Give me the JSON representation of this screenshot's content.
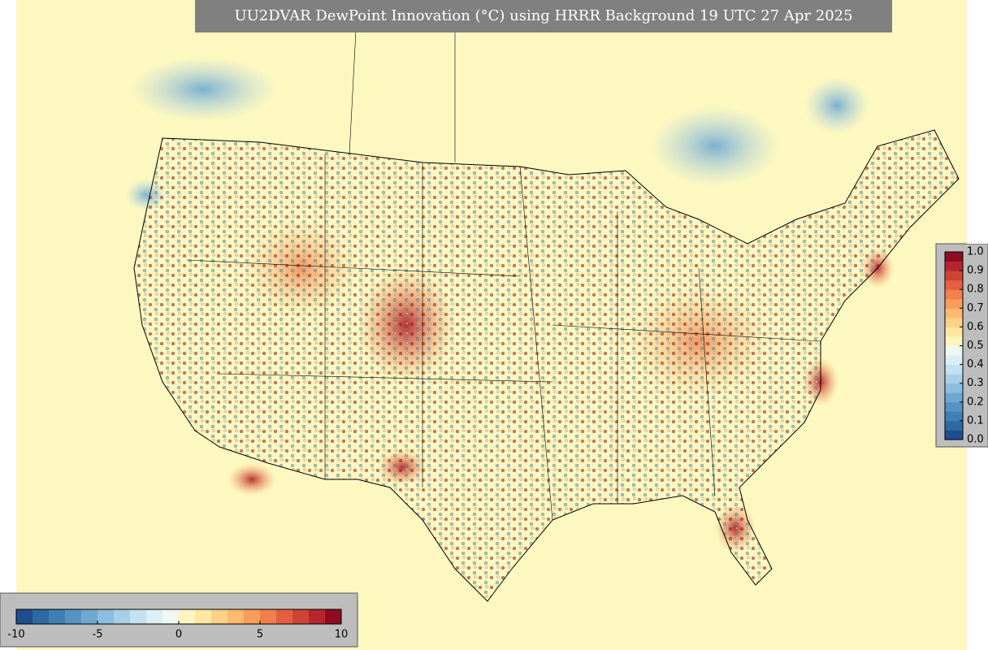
{
  "title": "UU2DVAR DewPoint Innovation (°C) using HRRR Background 19 UTC 27 Apr 2025",
  "colormap": [
    "#1f4e8c",
    "#2d6aa4",
    "#3e7fb6",
    "#5593c4",
    "#6ea8d2",
    "#8bbddf",
    "#a7d0e8",
    "#c2e2ef",
    "#dbeff4",
    "#eef8f0",
    "#fff5bf",
    "#fee7a0",
    "#fdd187",
    "#fcb970",
    "#f99d5c",
    "#f1804c",
    "#e45f41",
    "#cf4336",
    "#b5262c",
    "#8e0c22"
  ],
  "colorbar_innovation": {
    "lim": [
      -10,
      10
    ],
    "ticks": [
      -10,
      -5,
      0,
      5,
      10
    ]
  },
  "colorbar_fraction": {
    "lim": [
      0,
      1
    ],
    "ticks": [
      {
        "value": 0,
        "label": "0.0"
      },
      0.1,
      0.2,
      0.3,
      0.4,
      0.5,
      0.6,
      0.7,
      0.8,
      0.9,
      {
        "value": 1,
        "label": "1.0"
      }
    ]
  }
}
